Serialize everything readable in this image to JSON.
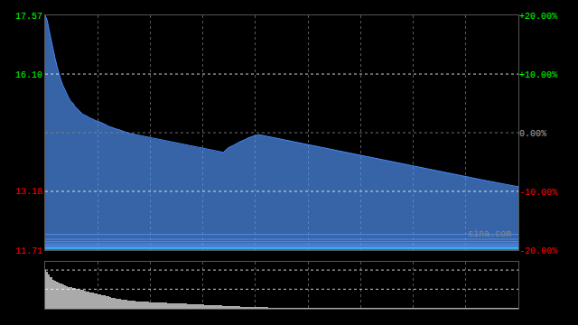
{
  "chart_data": [
    {
      "type": "area",
      "xlim": [
        0,
        239
      ],
      "xticks": [
        26.555555555555557,
        53.111111111111114,
        79.66666666666667,
        106.22222222222223,
        132.77777777777777,
        159.33333333333334,
        185.88888888888889,
        212.44444444444446,
        239
      ],
      "ylim": [
        11.71,
        17.57
      ],
      "yticks": [
        {
          "value": 17.57,
          "label": "17.57",
          "color": "#00ff00"
        },
        {
          "value": 16.1,
          "label": "16.10",
          "color": "#00ff00"
        },
        {
          "value": 13.18,
          "label": "13.18",
          "color": "#ff0000"
        },
        {
          "value": 11.71,
          "label": "11.71",
          "color": "#ff0000"
        }
      ],
      "y2lim": [
        -20.0,
        20.0
      ],
      "y2ticks": [
        {
          "value": 20.0,
          "label": "+20.00%",
          "color": "#00ff00"
        },
        {
          "value": 10.0,
          "label": "+10.00%",
          "color": "#00ff00"
        },
        {
          "value": 0.0,
          "label": "0.00%",
          "color": "#aaaaaa"
        },
        {
          "value": -10.0,
          "label": "-10.00%",
          "color": "#ff0000"
        },
        {
          "value": -20.0,
          "label": "-20.00%",
          "color": "#ff0000"
        }
      ],
      "grid": "x",
      "tick_labels": "y",
      "annotations": [
        {
          "text": "sina.com",
          "color": "#888888"
        }
      ],
      "series": [
        {
          "type": "area",
          "color": "#5599ff",
          "values": [
            17.57,
            17.45,
            17.2,
            16.95,
            16.7,
            16.5,
            16.3,
            16.1,
            15.95,
            15.82,
            15.7,
            15.6,
            15.5,
            15.42,
            15.38,
            15.3,
            15.25,
            15.2,
            15.15,
            15.1,
            15.08,
            15.05,
            15.02,
            15.0,
            14.98,
            14.95,
            14.93,
            14.92,
            14.9,
            14.88,
            14.85,
            14.83,
            14.8,
            14.78,
            14.77,
            14.75,
            14.73,
            14.72,
            14.7,
            14.68,
            14.67,
            14.65,
            14.63,
            14.62,
            14.61,
            14.6,
            14.58,
            14.57,
            14.56,
            14.55,
            14.54,
            14.53,
            14.52,
            14.51,
            14.5,
            14.49,
            14.48,
            14.47,
            14.46,
            14.45,
            14.44,
            14.43,
            14.42,
            14.41,
            14.4,
            14.39,
            14.38,
            14.37,
            14.36,
            14.35,
            14.34,
            14.33,
            14.32,
            14.31,
            14.3,
            14.29,
            14.28,
            14.27,
            14.26,
            14.25,
            14.24,
            14.23,
            14.22,
            14.21,
            14.2,
            14.19,
            14.18,
            14.17,
            14.16,
            14.15,
            14.15,
            14.2,
            14.25,
            14.28,
            14.3,
            14.32,
            14.35,
            14.38,
            14.4,
            14.43,
            14.45,
            14.47,
            14.5,
            14.52,
            14.53,
            14.55,
            14.57,
            14.58,
            14.59,
            14.58,
            14.57,
            14.56,
            14.55,
            14.54,
            14.53,
            14.52,
            14.51,
            14.5,
            14.49,
            14.48,
            14.47,
            14.46,
            14.45,
            14.44,
            14.43,
            14.42,
            14.41,
            14.4,
            14.39,
            14.38,
            14.37,
            14.36,
            14.35,
            14.34,
            14.33,
            14.32,
            14.31,
            14.3,
            14.29,
            14.28,
            14.27,
            14.26,
            14.25,
            14.24,
            14.23,
            14.22,
            14.21,
            14.2,
            14.19,
            14.18,
            14.17,
            14.16,
            14.15,
            14.14,
            14.13,
            14.12,
            14.11,
            14.1,
            14.09,
            14.08,
            14.07,
            14.06,
            14.05,
            14.04,
            14.03,
            14.02,
            14.01,
            14.0,
            13.99,
            13.98,
            13.97,
            13.96,
            13.95,
            13.94,
            13.93,
            13.92,
            13.91,
            13.9,
            13.89,
            13.88,
            13.87,
            13.86,
            13.85,
            13.84,
            13.83,
            13.82,
            13.81,
            13.8,
            13.79,
            13.78,
            13.77,
            13.76,
            13.75,
            13.74,
            13.73,
            13.72,
            13.71,
            13.7,
            13.69,
            13.68,
            13.67,
            13.66,
            13.65,
            13.64,
            13.63,
            13.62,
            13.61,
            13.6,
            13.59,
            13.58,
            13.57,
            13.56,
            13.55,
            13.54,
            13.53,
            13.52,
            13.51,
            13.5,
            13.49,
            13.48,
            13.47,
            13.46,
            13.45,
            13.44,
            13.43,
            13.42,
            13.41,
            13.4,
            13.39,
            13.38,
            13.37,
            13.36,
            13.35,
            13.34,
            13.33,
            13.32,
            13.31,
            13.3,
            13.3,
            13.3
          ]
        },
        {
          "type": "line",
          "color": "#4488ff",
          "values": [
            17.57,
            17.45,
            17.2,
            16.95,
            16.7,
            16.5,
            16.3,
            16.1,
            15.95,
            15.82,
            15.7,
            15.6,
            15.5,
            15.42,
            15.38,
            15.3,
            15.25,
            15.2,
            15.15,
            15.1,
            15.08,
            15.05,
            15.02,
            15.0,
            14.98,
            14.95,
            14.93,
            14.92,
            14.9,
            14.88,
            14.85,
            14.83,
            14.8,
            14.78,
            14.77,
            14.75,
            14.73,
            14.72,
            14.7,
            14.68,
            14.67,
            14.65,
            14.63,
            14.62,
            14.61,
            14.6,
            14.58,
            14.57,
            14.56,
            14.55,
            14.54,
            14.53,
            14.52,
            14.51,
            14.5,
            14.49,
            14.48,
            14.47,
            14.46,
            14.45,
            14.44,
            14.43,
            14.42,
            14.41,
            14.4,
            14.39,
            14.38,
            14.37,
            14.36,
            14.35,
            14.34,
            14.33,
            14.32,
            14.31,
            14.3,
            14.29,
            14.28,
            14.27,
            14.26,
            14.25,
            14.24,
            14.23,
            14.22,
            14.21,
            14.2,
            14.19,
            14.18,
            14.17,
            14.16,
            14.15,
            14.15,
            14.2,
            14.25,
            14.28,
            14.3,
            14.32,
            14.35,
            14.38,
            14.4,
            14.43,
            14.45,
            14.47,
            14.5,
            14.52,
            14.53,
            14.55,
            14.57,
            14.58,
            14.59,
            14.58,
            14.57,
            14.56,
            14.55,
            14.54,
            14.53,
            14.52,
            14.51,
            14.5,
            14.49,
            14.48,
            14.47,
            14.46,
            14.45,
            14.44,
            14.43,
            14.42,
            14.41,
            14.4,
            14.39,
            14.38,
            14.37,
            14.36,
            14.35,
            14.34,
            14.33,
            14.32,
            14.31,
            14.3,
            14.29,
            14.28,
            14.27,
            14.26,
            14.25,
            14.24,
            14.23,
            14.22,
            14.21,
            14.2,
            14.19,
            14.18,
            14.17,
            14.16,
            14.15,
            14.14,
            14.13,
            14.12,
            14.11,
            14.1,
            14.09,
            14.08,
            14.07,
            14.06,
            14.05,
            14.04,
            14.03,
            14.02,
            14.01,
            14.0,
            13.99,
            13.98,
            13.97,
            13.96,
            13.95,
            13.94,
            13.93,
            13.92,
            13.91,
            13.9,
            13.89,
            13.88,
            13.87,
            13.86,
            13.85,
            13.84,
            13.83,
            13.82,
            13.81,
            13.8,
            13.79,
            13.78,
            13.77,
            13.76,
            13.75,
            13.74,
            13.73,
            13.72,
            13.71,
            13.7,
            13.69,
            13.68,
            13.67,
            13.66,
            13.65,
            13.64,
            13.63,
            13.62,
            13.61,
            13.6,
            13.59,
            13.58,
            13.57,
            13.56,
            13.55,
            13.54,
            13.53,
            13.52,
            13.51,
            13.5,
            13.49,
            13.48,
            13.47,
            13.46,
            13.45,
            13.44,
            13.43,
            13.42,
            13.41,
            13.4,
            13.39,
            13.38,
            13.37,
            13.36,
            13.35,
            13.34,
            13.33,
            13.32,
            13.31,
            13.3,
            13.3,
            13.3
          ]
        },
        {
          "type": "hline",
          "color": "#5599ff",
          "line_style": "solid",
          "values": [
            12.1,
            11.98,
            11.92,
            11.87,
            11.83,
            11.8,
            11.77,
            11.74
          ]
        },
        {
          "type": "hline",
          "color": "#00ffff",
          "line_style": "solid",
          "values": [
            11.76
          ]
        },
        {
          "type": "hline",
          "color": "#888888",
          "line_style": "dotted",
          "values": [
            14.64
          ]
        },
        {
          "type": "hline",
          "color": "#ffffff",
          "line_style": "dotted",
          "values": [
            16.104,
            13.176
          ]
        }
      ]
    },
    {
      "type": "bar",
      "xlim": [
        0,
        239
      ],
      "xticks": [
        26.555555555555557,
        53.111111111111114,
        79.66666666666667,
        106.22222222222223,
        132.77777777777777,
        159.33333333333334,
        185.88888888888889,
        212.44444444444446,
        239
      ],
      "ylim": [
        0,
        960
      ],
      "grid": "x",
      "tick_labels": false,
      "series": [
        {
          "type": "bar",
          "color": "#aaaaaa",
          "values": [
            800,
            750,
            700,
            650,
            600,
            580,
            560,
            540,
            520,
            500,
            480,
            460,
            450,
            440,
            430,
            420,
            410,
            400,
            390,
            380,
            370,
            360,
            350,
            340,
            330,
            320,
            310,
            300,
            290,
            280,
            270,
            260,
            250,
            240,
            230,
            220,
            210,
            200,
            195,
            190,
            185,
            180,
            175,
            170,
            165,
            160,
            155,
            150,
            148,
            146,
            144,
            142,
            140,
            138,
            136,
            134,
            132,
            130,
            128,
            126,
            124,
            122,
            120,
            118,
            116,
            114,
            112,
            110,
            108,
            106,
            104,
            102,
            100,
            98,
            96,
            94,
            92,
            90,
            88,
            86,
            84,
            82,
            80,
            78,
            76,
            74,
            72,
            70,
            68,
            66,
            64,
            62,
            60,
            58,
            56,
            54,
            52,
            50,
            48,
            46,
            44,
            42,
            40,
            38,
            36,
            34,
            32,
            30,
            28,
            26,
            24,
            22,
            20,
            18,
            16,
            14,
            12,
            10,
            9,
            8,
            7,
            6,
            5,
            4,
            3,
            2,
            2,
            2,
            2,
            2,
            2,
            2,
            2,
            2,
            2,
            2,
            2,
            2,
            2,
            2,
            2,
            2,
            2,
            2,
            2,
            2,
            2,
            2,
            2,
            2,
            2,
            2,
            2,
            2,
            2,
            2,
            2,
            2,
            2,
            2,
            2,
            2,
            2,
            2,
            2,
            2,
            2,
            2,
            2,
            2,
            2,
            2,
            2,
            2,
            2,
            2,
            2,
            2,
            2,
            2,
            2,
            2,
            2,
            2,
            2,
            2,
            2,
            2,
            2,
            2,
            2,
            2,
            2,
            2,
            2,
            2,
            2,
            2,
            2,
            2,
            2,
            2,
            2,
            2,
            2,
            2,
            2,
            2,
            2,
            2,
            2,
            2,
            2,
            2,
            2,
            2,
            2,
            2,
            2,
            2,
            2,
            2,
            2,
            2,
            2,
            2,
            2,
            2,
            2,
            2,
            2,
            2,
            2,
            2,
            2,
            2,
            2,
            2,
            2,
            2
          ]
        },
        {
          "type": "hline",
          "color": "#ffffff",
          "line_style": "dotted",
          "values": [
            792,
            400
          ]
        }
      ]
    }
  ]
}
